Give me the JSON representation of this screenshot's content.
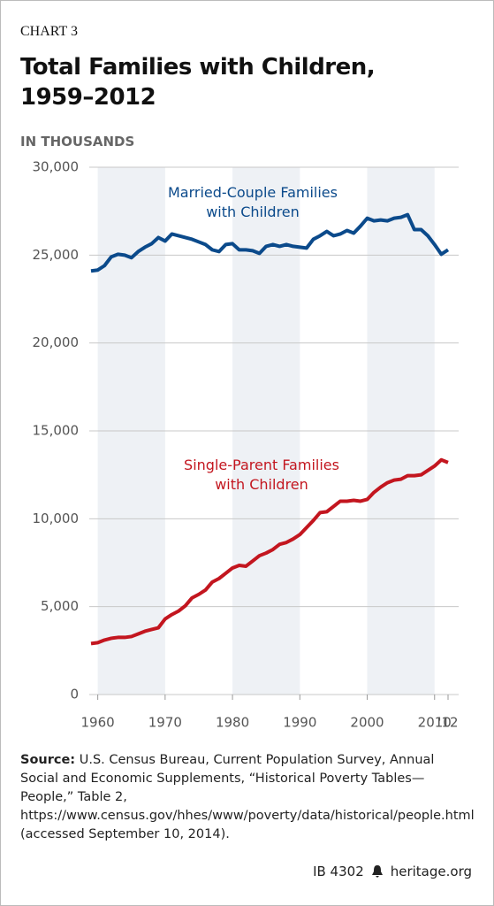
{
  "chart_data": {
    "type": "line",
    "label": "CHART 3",
    "title": "Total Families with Children, 1959–2012",
    "y_label": "IN THOUSANDS",
    "x": [
      1959,
      1960,
      1961,
      1962,
      1963,
      1964,
      1965,
      1966,
      1967,
      1968,
      1969,
      1970,
      1971,
      1972,
      1973,
      1974,
      1975,
      1976,
      1977,
      1978,
      1979,
      1980,
      1981,
      1982,
      1983,
      1984,
      1985,
      1986,
      1987,
      1988,
      1989,
      1990,
      1991,
      1992,
      1993,
      1994,
      1995,
      1996,
      1997,
      1998,
      1999,
      2000,
      2001,
      2002,
      2003,
      2004,
      2005,
      2006,
      2007,
      2008,
      2009,
      2010,
      2011,
      2012
    ],
    "series": [
      {
        "name": "Married-Couple Families with Children",
        "color": "#0b4a8b",
        "values": [
          24100,
          24150,
          24400,
          24900,
          25050,
          25000,
          24850,
          25200,
          25450,
          25650,
          26000,
          25800,
          26200,
          26100,
          26000,
          25900,
          25750,
          25600,
          25300,
          25200,
          25600,
          25650,
          25300,
          25300,
          25250,
          25100,
          25500,
          25600,
          25500,
          25600,
          25500,
          25450,
          25400,
          25900,
          26100,
          26350,
          26100,
          26200,
          26400,
          26250,
          26650,
          27100,
          26950,
          27000,
          26950,
          27100,
          27150,
          27300,
          26450,
          26450,
          26100,
          25600,
          25050,
          25300
        ]
      },
      {
        "name": "Single-Parent Families with Children",
        "color": "#c3161f",
        "values": [
          2900,
          2950,
          3100,
          3200,
          3250,
          3250,
          3300,
          3450,
          3600,
          3700,
          3800,
          4300,
          4550,
          4750,
          5050,
          5500,
          5700,
          5950,
          6400,
          6600,
          6900,
          7200,
          7350,
          7300,
          7600,
          7900,
          8050,
          8250,
          8550,
          8650,
          8850,
          9100,
          9500,
          9900,
          10350,
          10400,
          10700,
          11000,
          11000,
          11050,
          11000,
          11100,
          11500,
          11800,
          12050,
          12200,
          12250,
          12450,
          12450,
          12500,
          12750,
          13000,
          13350,
          13200
        ]
      }
    ],
    "xlim": [
      1959,
      2012
    ],
    "xticks": [
      1960,
      1970,
      1980,
      1990,
      2000,
      2010,
      {
        "value": 2012,
        "label": "'12"
      }
    ],
    "ylim": [
      0,
      30000
    ],
    "yticks": [
      0,
      {
        "value": 5000,
        "label": "5,000"
      },
      {
        "value": 10000,
        "label": "10,000"
      },
      {
        "value": 15000,
        "label": "15,000"
      },
      {
        "value": 20000,
        "label": "20,000"
      },
      {
        "value": 25000,
        "label": "25,000"
      },
      {
        "value": 30000,
        "label": "30,000"
      }
    ],
    "grid": true,
    "source_label": "Source:",
    "source": "U.S. Census Bureau, Current Population Survey, Annual Social and Economic Supplements, “Historical Poverty Tables—People,” Table 2, https://www.census.gov/hhes/www/poverty/data/historical/people.html (accessed September 10, 2014).",
    "report_id": "IB 4302",
    "publisher": "heritage.org"
  }
}
